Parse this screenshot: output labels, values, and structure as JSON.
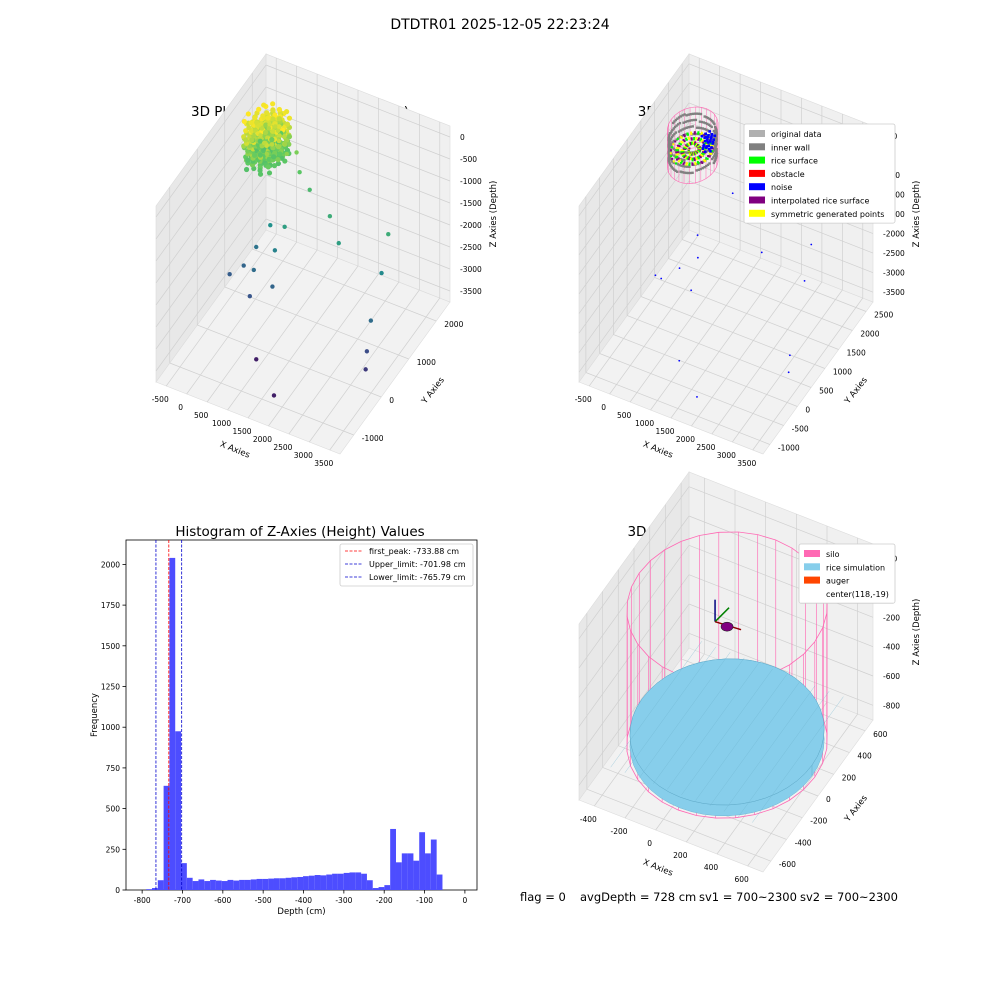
{
  "figure": {
    "title": "DTDTR01 2025-12-05 22:23:24",
    "status": {
      "flag": "flag = 0",
      "avg_depth": "avgDepth = 728 cm",
      "sv1": "sv1 = 700~2300",
      "sv2": "sv2 = 700~2300"
    }
  },
  "colors": {
    "original_data": "#b0b0b0",
    "inner_wall": "#808080",
    "rice_surface": "#00ff00",
    "obstacle": "#ff0000",
    "noise": "#0000ff",
    "interpolated_rice_surface": "#800080",
    "symmetric_generated_points": "#ffff00",
    "silo": "#ff69b4",
    "rice_simulation": "#87ceeb",
    "auger": "#ff4500",
    "hist_bar": "#4d4dff"
  },
  "chart_data": [
    {
      "id": "raw",
      "type": "scatter",
      "title": "3D Plot of Silo Interior(row data)",
      "xlabel": "X Axies",
      "ylabel": "Y Axies",
      "zlabel": "Z Axies (Depth)",
      "x_ticks": [
        "-500",
        "0",
        "500",
        "1000",
        "1500",
        "2000",
        "2500",
        "3000",
        "3500"
      ],
      "y_ticks": [
        "-1000",
        "0",
        "1000",
        "2000"
      ],
      "z_ticks": [
        "0",
        "-500",
        "-1000",
        "-1500",
        "-2000",
        "-2500",
        "-3000",
        "-3500"
      ],
      "xlim": [
        -700,
        3600
      ],
      "ylim": [
        -1300,
        2700
      ],
      "zlim": [
        -3800,
        200
      ],
      "colormap": "viridis (by depth)",
      "points": [
        {
          "x": -300,
          "y": 2000,
          "z": -500
        },
        {
          "x": -200,
          "y": 2050,
          "z": -650
        },
        {
          "x": -100,
          "y": 2100,
          "z": -700
        },
        {
          "x": 0,
          "y": 2050,
          "z": -720
        },
        {
          "x": 100,
          "y": 1950,
          "z": -700
        },
        {
          "x": 150,
          "y": 1850,
          "z": -720
        },
        {
          "x": 50,
          "y": 1750,
          "z": -750
        },
        {
          "x": -100,
          "y": 1700,
          "z": -730
        },
        {
          "x": -250,
          "y": 1800,
          "z": -700
        },
        {
          "x": -350,
          "y": 1900,
          "z": -600
        },
        {
          "x": -250,
          "y": 2100,
          "z": -800
        },
        {
          "x": 200,
          "y": 2000,
          "z": -900
        },
        {
          "x": 0,
          "y": 1650,
          "z": -900
        },
        {
          "x": 300,
          "y": 1900,
          "z": -1000
        },
        {
          "x": 400,
          "y": 2100,
          "z": -1100
        },
        {
          "x": 600,
          "y": 1900,
          "z": -1300
        },
        {
          "x": 900,
          "y": 1800,
          "z": -1500
        },
        {
          "x": 1500,
          "y": 1600,
          "z": -1700
        },
        {
          "x": 1900,
          "y": 1300,
          "z": -1900
        },
        {
          "x": 700,
          "y": 1200,
          "z": -1900
        },
        {
          "x": 300,
          "y": 1300,
          "z": -2100
        },
        {
          "x": 600,
          "y": 1000,
          "z": -2300
        },
        {
          "x": 100,
          "y": 1100,
          "z": -2500
        },
        {
          "x": 0,
          "y": 800,
          "z": -2700
        },
        {
          "x": -200,
          "y": 600,
          "z": -2800
        },
        {
          "x": 300,
          "y": 700,
          "z": -2600
        },
        {
          "x": 800,
          "y": 600,
          "z": -2700
        },
        {
          "x": 2800,
          "y": 1700,
          "z": -1700
        },
        {
          "x": 2900,
          "y": 1300,
          "z": -2200
        },
        {
          "x": 3100,
          "y": 600,
          "z": -2600
        },
        {
          "x": 3200,
          "y": 300,
          "z": -3000
        },
        {
          "x": 3300,
          "y": 100,
          "z": -3200
        },
        {
          "x": 1000,
          "y": -300,
          "z": -3500
        },
        {
          "x": 1800,
          "y": -900,
          "z": -3500
        },
        {
          "x": 400,
          "y": 400,
          "z": -2900
        }
      ]
    },
    {
      "id": "classify",
      "type": "scatter",
      "title": "3D classify of Silo Interior",
      "xlabel": "X Axies",
      "ylabel": "Y Axies",
      "zlabel": "Z Axies (Depth)",
      "x_ticks": [
        "-500",
        "0",
        "500",
        "1000",
        "1500",
        "2000",
        "2500",
        "3000",
        "3500"
      ],
      "y_ticks": [
        "-1000",
        "-500",
        "0",
        "500",
        "1000",
        "1500",
        "2000",
        "2500"
      ],
      "z_ticks": [
        "500",
        "0",
        "-500",
        "-1000",
        "-1500",
        "-2000",
        "-2500",
        "-3000",
        "-3500"
      ],
      "xlim": [
        -700,
        3600
      ],
      "ylim": [
        -1300,
        2700
      ],
      "zlim": [
        -3800,
        700
      ],
      "legend_position": "top-right",
      "legend": [
        {
          "label": "original data",
          "color_key": "original_data"
        },
        {
          "label": "inner wall",
          "color_key": "inner_wall"
        },
        {
          "label": "rice surface",
          "color_key": "rice_surface"
        },
        {
          "label": "obstacle",
          "color_key": "obstacle"
        },
        {
          "label": "noise",
          "color_key": "noise"
        },
        {
          "label": "interpolated rice surface",
          "color_key": "interpolated_rice_surface"
        },
        {
          "label": "symmetric generated points",
          "color_key": "symmetric_generated_points"
        }
      ],
      "noise_points": [
        {
          "x": 900,
          "y": 1800,
          "z": -1300
        },
        {
          "x": 1500,
          "y": 1600,
          "z": -1600
        },
        {
          "x": 2800,
          "y": 1700,
          "z": -1700
        },
        {
          "x": 1900,
          "y": 1300,
          "z": -1900
        },
        {
          "x": 600,
          "y": 1000,
          "z": -2300
        },
        {
          "x": 300,
          "y": 800,
          "z": -2500
        },
        {
          "x": 0,
          "y": 600,
          "z": -2700
        },
        {
          "x": 700,
          "y": 600,
          "z": -2700
        },
        {
          "x": -200,
          "y": 700,
          "z": -2800
        },
        {
          "x": 3200,
          "y": 300,
          "z": -3000
        },
        {
          "x": 3300,
          "y": 100,
          "z": -3200
        },
        {
          "x": 1000,
          "y": -300,
          "z": -3500
        },
        {
          "x": 1800,
          "y": -900,
          "z": -3500
        },
        {
          "x": 2900,
          "y": 1300,
          "z": -2200
        },
        {
          "x": 400,
          "y": 1300,
          "z": -2100
        }
      ]
    },
    {
      "id": "histogram",
      "type": "bar",
      "title": "Histogram of Z-Axies (Height) Values",
      "xlabel": "Depth (cm)",
      "ylabel": "Frequency",
      "xlim": [
        -840,
        30
      ],
      "ylim": [
        0,
        2150
      ],
      "x_ticks": [
        -800,
        -700,
        -600,
        -500,
        -400,
        -300,
        -200,
        -100,
        0
      ],
      "y_ticks": [
        0,
        250,
        500,
        750,
        1000,
        1250,
        1500,
        1750,
        2000
      ],
      "bin_start": -790,
      "bin_width": 14.4,
      "values": [
        5,
        12,
        60,
        640,
        2040,
        975,
        165,
        75,
        55,
        65,
        55,
        62,
        58,
        55,
        62,
        58,
        62,
        62,
        65,
        68,
        68,
        70,
        72,
        72,
        75,
        78,
        80,
        85,
        88,
        92,
        90,
        95,
        100,
        100,
        105,
        108,
        108,
        100,
        60,
        12,
        18,
        30,
        375,
        170,
        225,
        225,
        180,
        355,
        225,
        310,
        95
      ],
      "lines": [
        {
          "label": "first_peak: -733.88 cm",
          "value": -733.88,
          "color": "#ff0000"
        },
        {
          "label": "Upper_limit: -701.98 cm",
          "value": -701.98,
          "color": "#0000cd"
        },
        {
          "label": "Lower_limit: -765.79 cm",
          "value": -765.79,
          "color": "#0000cd"
        }
      ],
      "legend_position": "top-right"
    },
    {
      "id": "simulation",
      "type": "scatter",
      "title": "3D simulation of Silo Interior",
      "xlabel": "X Axies",
      "ylabel": "Y Axies",
      "zlabel": "Z Axies (Depth)",
      "x_ticks": [
        "-400",
        "-200",
        "0",
        "200",
        "400",
        "600"
      ],
      "y_ticks": [
        "-600",
        "-400",
        "-200",
        "0",
        "200",
        "400",
        "600"
      ],
      "z_ticks": [
        "200",
        "0",
        "-200",
        "-400",
        "-600",
        "-800"
      ],
      "xlim": [
        -550,
        750
      ],
      "ylim": [
        -700,
        700
      ],
      "zlim": [
        -950,
        350
      ],
      "legend_position": "top-right",
      "legend": [
        {
          "label": "silo",
          "color_key": "silo"
        },
        {
          "label": "rice simulation",
          "color_key": "rice_simulation"
        },
        {
          "label": "auger",
          "color_key": "auger"
        },
        {
          "label": "center(118,-19)",
          "color_key": ""
        }
      ]
    }
  ]
}
